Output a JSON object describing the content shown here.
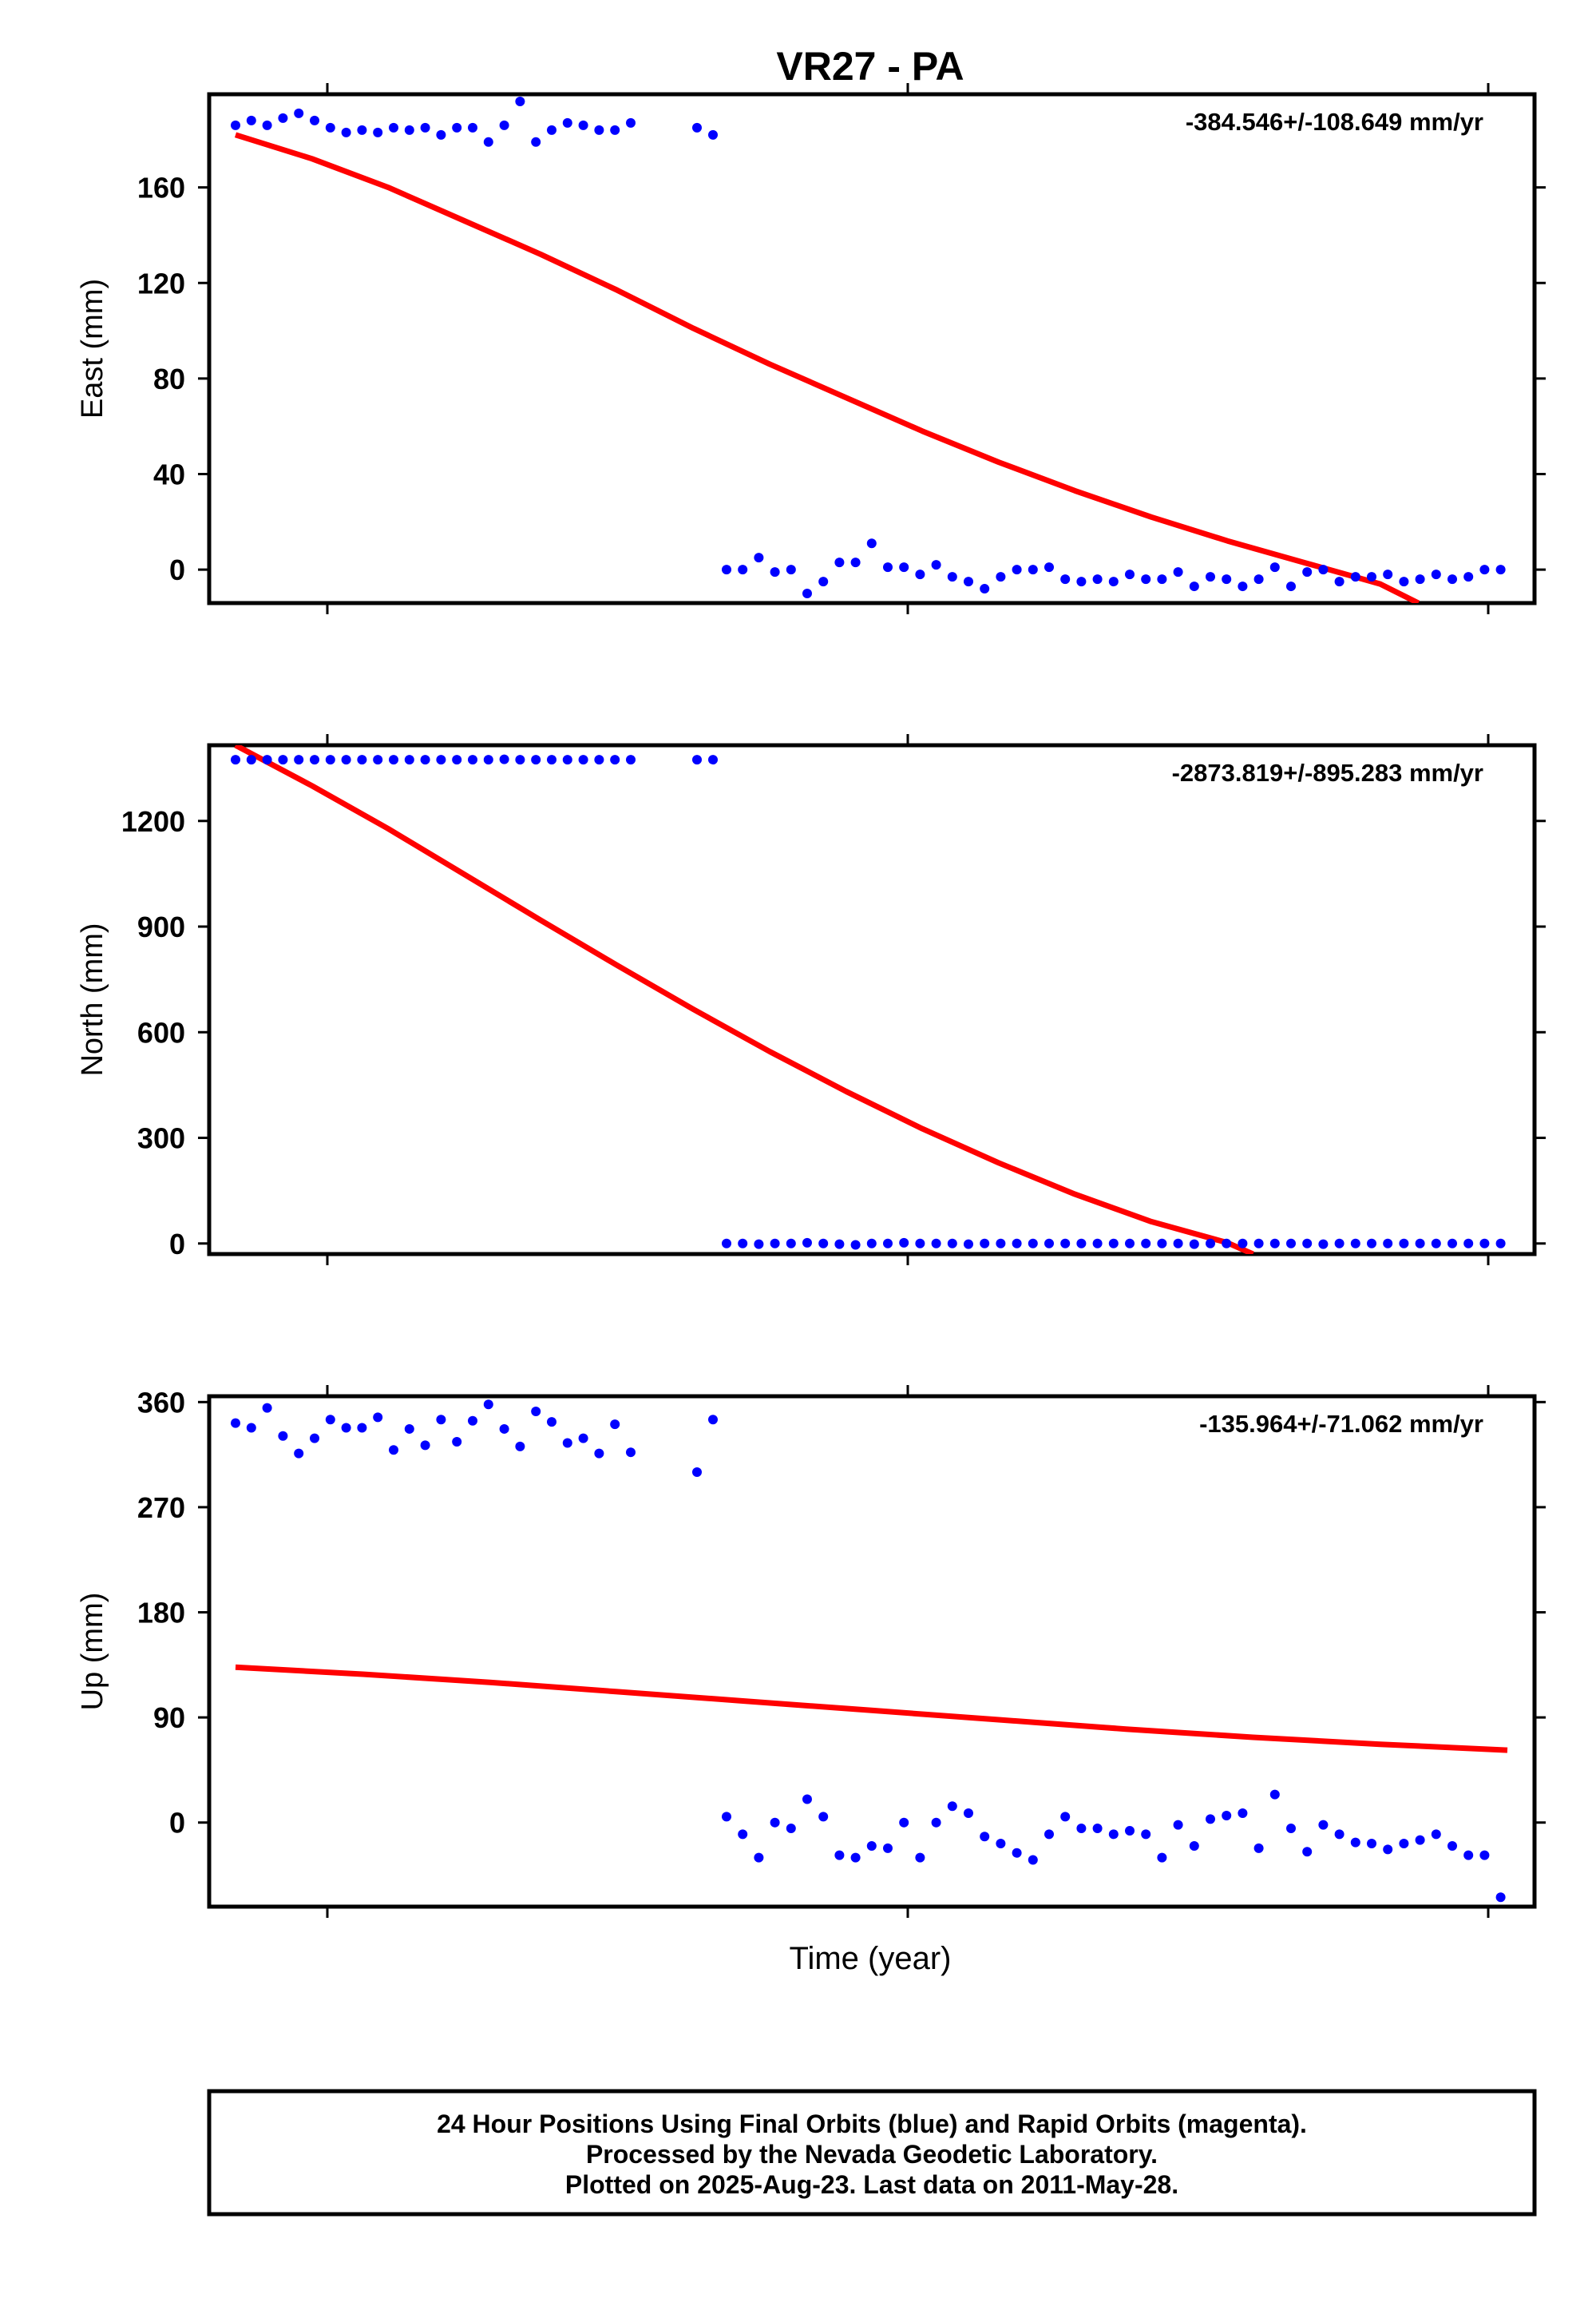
{
  "title": "VR27 - PA",
  "xlabel": "Time (year)",
  "footer": {
    "line1": "24 Hour Positions Using Final Orbits (blue) and Rapid Orbits (magenta).",
    "line2": "Processed by the Nevada Geodetic Laboratory.",
    "line3": "Plotted on 2025-Aug-23. Last data on 2011-May-28."
  },
  "colors": {
    "points": "#0000ff",
    "fit": "#ff0000",
    "frame": "#000000"
  },
  "chart_data": [
    {
      "type": "scatter",
      "component": "east",
      "ylabel": "East (mm)",
      "rate_label": "-384.546+/-108.649 mm/yr",
      "ylim": [
        -14,
        199
      ],
      "yticks": [
        0,
        40,
        80,
        120,
        160
      ],
      "ytick_labels": [
        "0",
        "40",
        "80",
        "120",
        "160"
      ],
      "series": [
        {
          "values": [
            186,
            188,
            186,
            189,
            191,
            188,
            185,
            183,
            184,
            183,
            185,
            184,
            185,
            182,
            185,
            185,
            179,
            186,
            196,
            179,
            184,
            187,
            186,
            184,
            184,
            187,
            185,
            182,
            0,
            0,
            5,
            -1,
            0,
            -10,
            -5,
            3,
            3,
            11,
            1,
            1,
            -2,
            2,
            -3,
            -5,
            -8,
            -3,
            0,
            0,
            1,
            -4,
            -5,
            -4,
            -5,
            -2,
            -4,
            -4,
            -1,
            -7,
            -3,
            -4,
            -7,
            -4,
            1,
            -7,
            -1,
            0,
            -5,
            -3,
            -3,
            -2,
            -5,
            -4,
            -2,
            -4,
            -3,
            0,
            0
          ]
        }
      ],
      "fit": [
        {
          "x": 0.0,
          "y": 182
        },
        {
          "x": 0.06,
          "y": 172
        },
        {
          "x": 0.12,
          "y": 160
        },
        {
          "x": 0.18,
          "y": 146
        },
        {
          "x": 0.24,
          "y": 132
        },
        {
          "x": 0.3,
          "y": 117
        },
        {
          "x": 0.36,
          "y": 101
        },
        {
          "x": 0.42,
          "y": 86
        },
        {
          "x": 0.48,
          "y": 72
        },
        {
          "x": 0.54,
          "y": 58
        },
        {
          "x": 0.6,
          "y": 45
        },
        {
          "x": 0.66,
          "y": 33
        },
        {
          "x": 0.72,
          "y": 22
        },
        {
          "x": 0.78,
          "y": 12
        },
        {
          "x": 0.84,
          "y": 3
        },
        {
          "x": 0.9,
          "y": -6
        },
        {
          "x": 0.93,
          "y": -14
        }
      ]
    },
    {
      "type": "scatter",
      "component": "north",
      "ylabel": "North (mm)",
      "rate_label": "-2873.819+/-895.283 mm/yr",
      "ylim": [
        -30,
        1415
      ],
      "yticks": [
        0,
        300,
        600,
        900,
        1200
      ],
      "ytick_labels": [
        "0",
        "300",
        "600",
        "900",
        "1200"
      ],
      "series": [
        {
          "values": [
            1374,
            1374,
            1374,
            1374,
            1374,
            1374,
            1374,
            1374,
            1374,
            1374,
            1374,
            1374,
            1374,
            1374,
            1374,
            1374,
            1374,
            1375,
            1374,
            1374,
            1374,
            1374,
            1374,
            1374,
            1374,
            1374,
            1374,
            1374,
            0,
            0,
            -2,
            0,
            0,
            2,
            0,
            -2,
            -4,
            0,
            0,
            2,
            0,
            0,
            0,
            -2,
            0,
            0,
            0,
            0,
            0,
            0,
            0,
            0,
            0,
            0,
            0,
            0,
            0,
            -2,
            0,
            0,
            0,
            0,
            0,
            0,
            0,
            -2,
            0,
            0,
            0,
            0,
            0,
            0,
            0,
            0,
            0,
            0,
            0
          ]
        }
      ],
      "fit": [
        {
          "x": 0.0,
          "y": 1415
        },
        {
          "x": 0.06,
          "y": 1300
        },
        {
          "x": 0.12,
          "y": 1178
        },
        {
          "x": 0.18,
          "y": 1048
        },
        {
          "x": 0.24,
          "y": 918
        },
        {
          "x": 0.3,
          "y": 790
        },
        {
          "x": 0.36,
          "y": 665
        },
        {
          "x": 0.42,
          "y": 545
        },
        {
          "x": 0.48,
          "y": 432
        },
        {
          "x": 0.54,
          "y": 326
        },
        {
          "x": 0.6,
          "y": 229
        },
        {
          "x": 0.66,
          "y": 140
        },
        {
          "x": 0.72,
          "y": 62
        },
        {
          "x": 0.78,
          "y": 2
        },
        {
          "x": 0.8,
          "y": -30
        }
      ]
    },
    {
      "type": "scatter",
      "component": "up",
      "ylabel": "Up (mm)",
      "rate_label": "-135.964+/-71.062 mm/yr",
      "ylim": [
        -72,
        365
      ],
      "yticks": [
        0,
        90,
        180,
        270,
        360
      ],
      "ytick_labels": [
        "0",
        "90",
        "180",
        "270",
        "360"
      ],
      "series": [
        {
          "values": [
            342,
            338,
            355,
            331,
            316,
            329,
            345,
            338,
            338,
            347,
            319,
            337,
            323,
            345,
            326,
            344,
            358,
            337,
            322,
            352,
            343,
            325,
            329,
            316,
            341,
            317,
            300,
            345,
            5,
            -10,
            -30,
            0,
            -5,
            20,
            5,
            -28,
            -30,
            -20,
            -22,
            0,
            -30,
            0,
            14,
            8,
            -12,
            -18,
            -26,
            -32,
            -10,
            5,
            -5,
            -5,
            -10,
            -7,
            -10,
            -30,
            -2,
            -20,
            3,
            6,
            8,
            -22,
            24,
            -5,
            -25,
            -2,
            -10,
            -17,
            -18,
            -23,
            -18,
            -15,
            -10,
            -20,
            -28,
            -28,
            -64
          ]
        }
      ],
      "fit": [
        {
          "x": 0.0,
          "y": 133
        },
        {
          "x": 0.1,
          "y": 127
        },
        {
          "x": 0.2,
          "y": 120
        },
        {
          "x": 0.3,
          "y": 112
        },
        {
          "x": 0.4,
          "y": 104
        },
        {
          "x": 0.5,
          "y": 96
        },
        {
          "x": 0.6,
          "y": 88
        },
        {
          "x": 0.7,
          "y": 80
        },
        {
          "x": 0.8,
          "y": 73
        },
        {
          "x": 0.9,
          "y": 67
        },
        {
          "x": 1.0,
          "y": 62
        }
      ]
    }
  ]
}
